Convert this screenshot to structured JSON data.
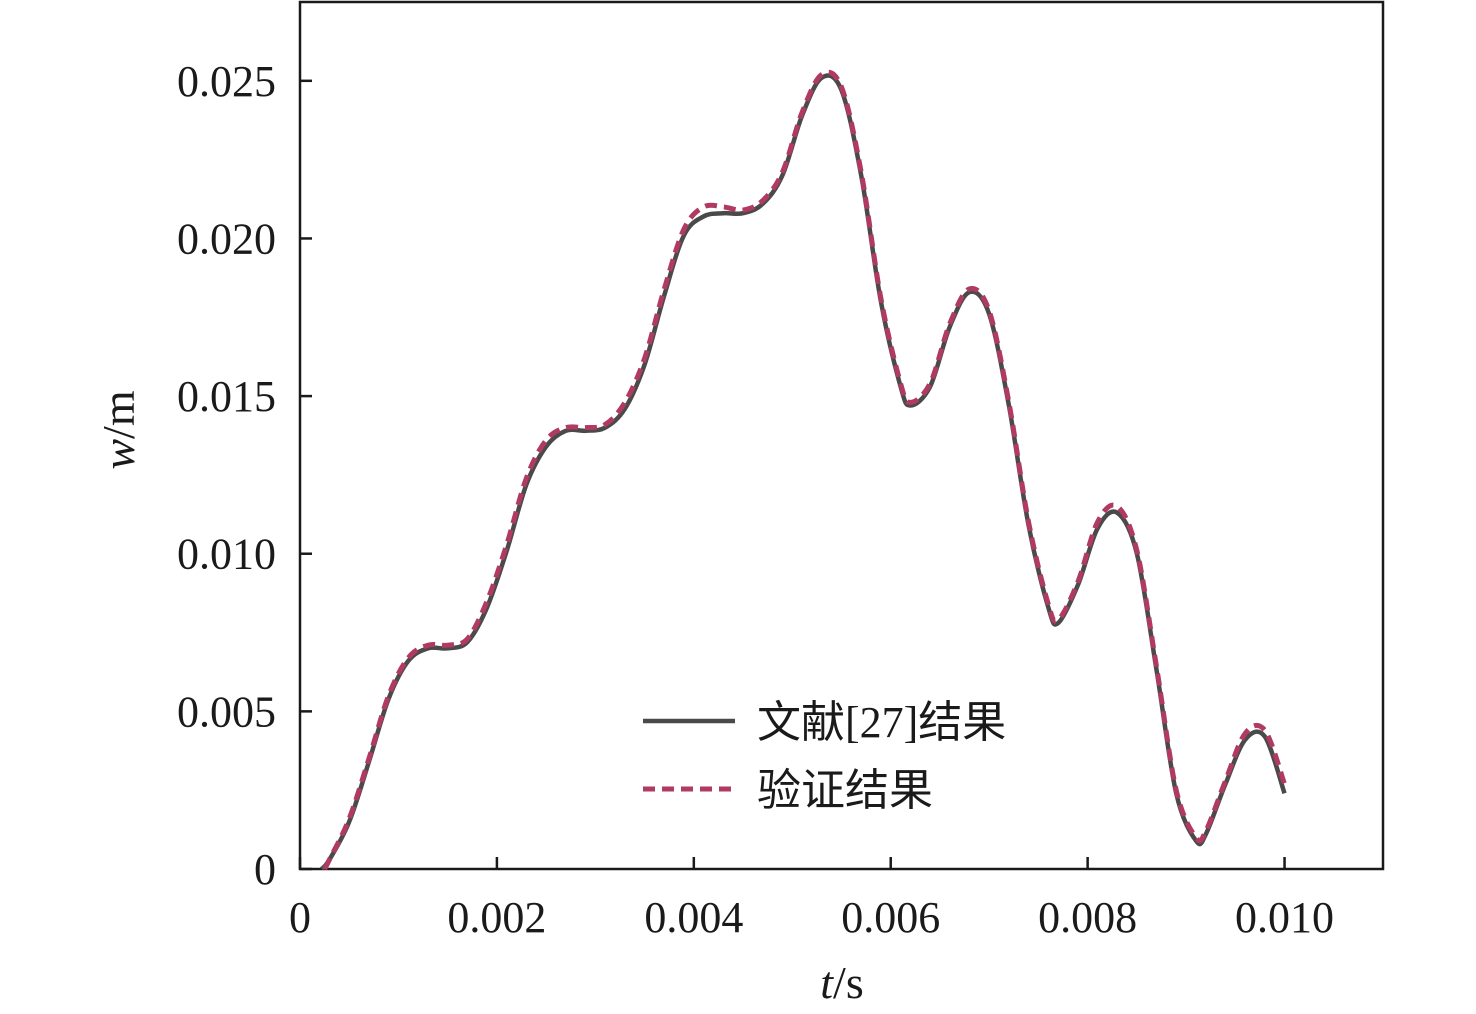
{
  "chart_data": {
    "type": "line",
    "xlabel": {
      "var": "t",
      "unit": "/s"
    },
    "ylabel": {
      "var": "w",
      "unit": "/m"
    },
    "xlim": [
      0,
      0.011
    ],
    "ylim": [
      0,
      0.0275
    ],
    "x_ticks": [
      0,
      0.002,
      0.004,
      0.006,
      0.008,
      0.01
    ],
    "x_tick_labels": [
      "0",
      "0.002",
      "0.004",
      "0.006",
      "0.008",
      "0.010"
    ],
    "y_ticks": [
      0,
      0.005,
      0.01,
      0.015,
      0.02,
      0.025
    ],
    "y_tick_labels": [
      "0",
      "0.005",
      "0.010",
      "0.015",
      "0.020",
      "0.025"
    ],
    "grid": false,
    "legend_position": "lower-center",
    "series": [
      {
        "name": "文献[27]结果",
        "color": "#4a4a4a",
        "style": "solid",
        "x": [
          0.00022,
          0.0003,
          0.0005,
          0.0007,
          0.0009,
          0.0011,
          0.0013,
          0.0015,
          0.0017,
          0.0019,
          0.0021,
          0.0023,
          0.0025,
          0.0027,
          0.0029,
          0.0031,
          0.0033,
          0.0035,
          0.0037,
          0.0039,
          0.0041,
          0.0043,
          0.0045,
          0.0047,
          0.0049,
          0.0051,
          0.0053,
          0.0055,
          0.0057,
          0.0059,
          0.0061,
          0.0062,
          0.0064,
          0.0066,
          0.0068,
          0.007,
          0.0072,
          0.0074,
          0.0076,
          0.0077,
          0.0079,
          0.0081,
          0.0083,
          0.0085,
          0.0087,
          0.0089,
          0.0091,
          0.0092,
          0.0094,
          0.0096,
          0.0098,
          0.01
        ],
        "y": [
          0,
          0.0003,
          0.0015,
          0.0034,
          0.0054,
          0.0066,
          0.007,
          0.007,
          0.0072,
          0.0083,
          0.0101,
          0.0122,
          0.0134,
          0.0139,
          0.0139,
          0.014,
          0.0146,
          0.016,
          0.0182,
          0.0201,
          0.0207,
          0.0208,
          0.0208,
          0.0211,
          0.022,
          0.0239,
          0.0251,
          0.0247,
          0.022,
          0.018,
          0.0153,
          0.0147,
          0.0153,
          0.0172,
          0.0183,
          0.0176,
          0.0147,
          0.0109,
          0.0083,
          0.0078,
          0.009,
          0.0108,
          0.0113,
          0.01,
          0.0063,
          0.0024,
          0.0009,
          0.0011,
          0.0027,
          0.0041,
          0.0042,
          0.0024
        ]
      },
      {
        "name": "验证结果",
        "color": "#b03a62",
        "style": "dashed",
        "x": [
          0.00025,
          0.0003,
          0.0005,
          0.0007,
          0.0009,
          0.0011,
          0.0013,
          0.0015,
          0.0017,
          0.0019,
          0.0021,
          0.0023,
          0.0025,
          0.0027,
          0.0029,
          0.0031,
          0.0033,
          0.0035,
          0.0037,
          0.0039,
          0.0041,
          0.0043,
          0.0045,
          0.0047,
          0.0049,
          0.0051,
          0.0053,
          0.0055,
          0.0057,
          0.0059,
          0.0061,
          0.0062,
          0.0064,
          0.0066,
          0.0068,
          0.007,
          0.0072,
          0.0074,
          0.0076,
          0.0077,
          0.0079,
          0.0081,
          0.0083,
          0.0085,
          0.0087,
          0.0089,
          0.0091,
          0.0092,
          0.0094,
          0.0096,
          0.0098,
          0.01
        ],
        "y": [
          0,
          0.0003,
          0.0016,
          0.0035,
          0.0055,
          0.0067,
          0.0071,
          0.0071,
          0.0073,
          0.0085,
          0.0103,
          0.0124,
          0.0136,
          0.014,
          0.014,
          0.0141,
          0.0148,
          0.0162,
          0.0184,
          0.0203,
          0.021,
          0.021,
          0.0209,
          0.0212,
          0.0221,
          0.024,
          0.0252,
          0.0248,
          0.0221,
          0.0181,
          0.0154,
          0.0148,
          0.0154,
          0.0173,
          0.0184,
          0.0177,
          0.0148,
          0.011,
          0.0084,
          0.0079,
          0.0091,
          0.011,
          0.0115,
          0.0101,
          0.0064,
          0.0025,
          0.001,
          0.0012,
          0.0028,
          0.0043,
          0.0044,
          0.0027
        ]
      }
    ]
  }
}
